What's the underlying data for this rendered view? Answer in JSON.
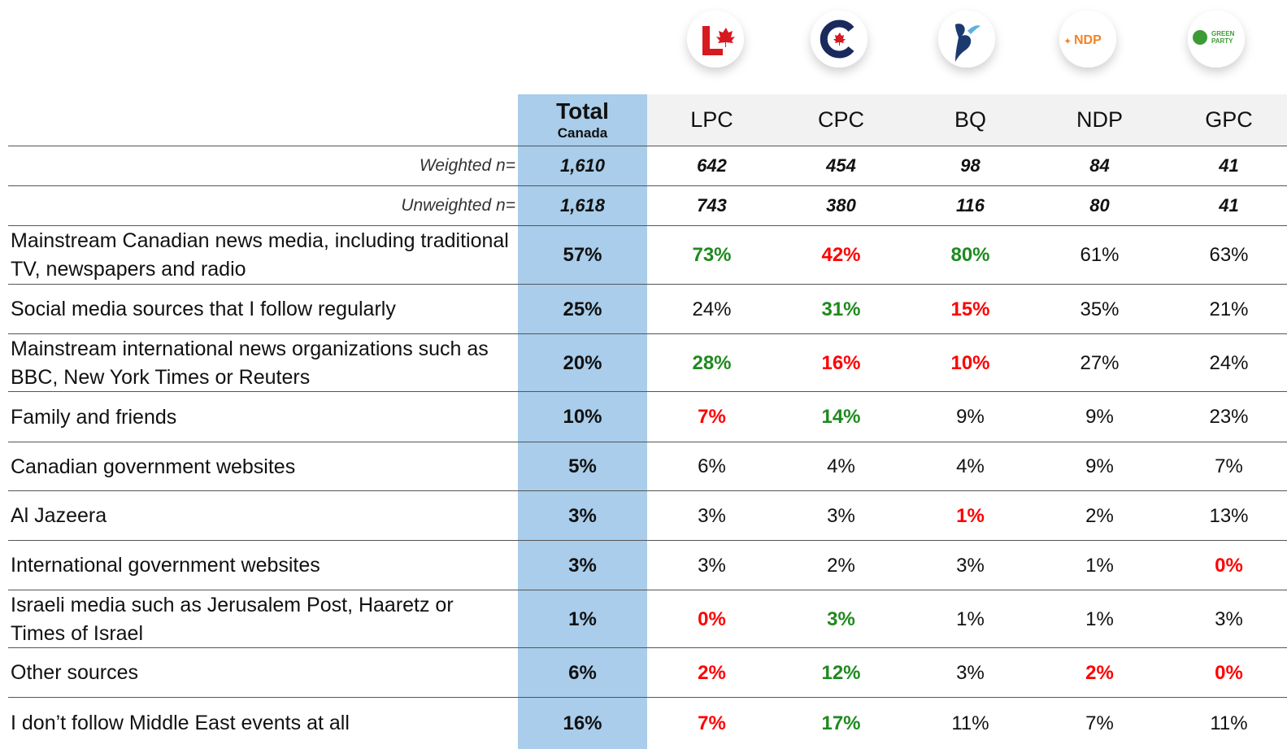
{
  "logos": {
    "ndp": "NDP",
    "green": [
      "GREEN",
      "PARTY"
    ]
  },
  "header": {
    "total": "Total",
    "total_sub": "Canada",
    "parties": [
      "LPC",
      "CPC",
      "BQ",
      "NDP",
      "GPC"
    ]
  },
  "weighted": {
    "label": "Weighted n=",
    "values": [
      "1,610",
      "642",
      "454",
      "98",
      "84",
      "41"
    ]
  },
  "unweighted": {
    "label": "Unweighted n=",
    "values": [
      "1,618",
      "743",
      "380",
      "116",
      "80",
      "41"
    ]
  },
  "rows": [
    {
      "label": "Mainstream Canadian news media, including traditional TV, newspapers and radio",
      "values": [
        "57%",
        "73%",
        "42%",
        "80%",
        "61%",
        "63%"
      ],
      "colors": [
        null,
        "#1e8a1e",
        "#ff0000",
        "#1e8a1e",
        null,
        null
      ]
    },
    {
      "label": "Social media sources that I follow regularly",
      "values": [
        "25%",
        "24%",
        "31%",
        "15%",
        "35%",
        "21%"
      ],
      "colors": [
        null,
        null,
        "#1e8a1e",
        "#ff0000",
        null,
        null
      ]
    },
    {
      "label": "Mainstream international news organizations such as BBC, New York Times or Reuters",
      "values": [
        "20%",
        "28%",
        "16%",
        "10%",
        "27%",
        "24%"
      ],
      "colors": [
        null,
        "#1e8a1e",
        "#ff0000",
        "#ff0000",
        null,
        null
      ]
    },
    {
      "label": "Family and friends",
      "values": [
        "10%",
        "7%",
        "14%",
        "9%",
        "9%",
        "23%"
      ],
      "colors": [
        null,
        "#ff0000",
        "#1e8a1e",
        null,
        null,
        null
      ]
    },
    {
      "label": "Canadian government websites",
      "values": [
        "5%",
        "6%",
        "4%",
        "4%",
        "9%",
        "7%"
      ],
      "colors": [
        null,
        null,
        null,
        null,
        null,
        null
      ]
    },
    {
      "label": "Al Jazeera",
      "values": [
        "3%",
        "3%",
        "3%",
        "1%",
        "2%",
        "13%"
      ],
      "colors": [
        null,
        null,
        null,
        "#ff0000",
        null,
        null
      ]
    },
    {
      "label": "International government websites",
      "values": [
        "3%",
        "3%",
        "2%",
        "3%",
        "1%",
        "0%"
      ],
      "colors": [
        null,
        null,
        null,
        null,
        null,
        "#ff0000"
      ]
    },
    {
      "label": "Israeli media such as Jerusalem Post, Haaretz or Times of Israel",
      "values": [
        "1%",
        "0%",
        "3%",
        "1%",
        "1%",
        "3%"
      ],
      "colors": [
        null,
        "#ff0000",
        "#1e8a1e",
        null,
        null,
        null
      ]
    },
    {
      "label": "Other sources",
      "values": [
        "6%",
        "2%",
        "12%",
        "3%",
        "2%",
        "0%"
      ],
      "colors": [
        null,
        "#ff0000",
        "#1e8a1e",
        null,
        "#ff0000",
        "#ff0000"
      ]
    },
    {
      "label": "I don’t follow Middle East events at all",
      "values": [
        "16%",
        "7%",
        "17%",
        "11%",
        "7%",
        "11%"
      ],
      "colors": [
        null,
        "#ff0000",
        "#1e8a1e",
        null,
        null,
        null
      ]
    }
  ]
}
